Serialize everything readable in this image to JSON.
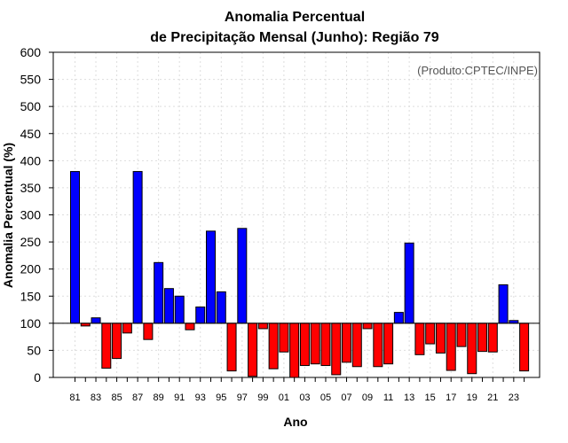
{
  "chart_data": {
    "type": "bar",
    "title": [
      "Anomalia Percentual",
      "de Precipitação Mensal (Junho): Região 79"
    ],
    "source": "(Produto:CPTEC/INPE)",
    "xlabel": "Ano",
    "ylabel": "Anomalia Percentual (%)",
    "ylim": [
      0,
      600
    ],
    "yticks": [
      0,
      50,
      100,
      150,
      200,
      250,
      300,
      350,
      400,
      450,
      500,
      550,
      600
    ],
    "baseline": 100,
    "grid": true,
    "colors": {
      "above": "#0000ff",
      "below": "#ff0000",
      "grid": "#dddddd",
      "axis": "#000000"
    },
    "categories": [
      "81",
      "82",
      "83",
      "84",
      "85",
      "86",
      "87",
      "88",
      "89",
      "90",
      "91",
      "92",
      "93",
      "94",
      "95",
      "96",
      "97",
      "98",
      "99",
      "00",
      "01",
      "02",
      "03",
      "04",
      "05",
      "06",
      "07",
      "08",
      "09",
      "10",
      "11",
      "12",
      "13",
      "14",
      "15",
      "16",
      "17",
      "18",
      "19",
      "20",
      "21",
      "22",
      "23",
      "24"
    ],
    "tick_labels": [
      "81",
      "83",
      "85",
      "87",
      "89",
      "91",
      "93",
      "95",
      "97",
      "99",
      "01",
      "03",
      "05",
      "07",
      "09",
      "11",
      "13",
      "15",
      "17",
      "19",
      "21",
      "23"
    ],
    "values": [
      380,
      95,
      110,
      17,
      35,
      82,
      380,
      70,
      212,
      164,
      150,
      88,
      130,
      270,
      158,
      12,
      275,
      2,
      90,
      16,
      47,
      0,
      22,
      25,
      22,
      5,
      28,
      20,
      90,
      20,
      25,
      120,
      248,
      42,
      62,
      45,
      13,
      57,
      7,
      48,
      47,
      171,
      105,
      12
    ]
  }
}
